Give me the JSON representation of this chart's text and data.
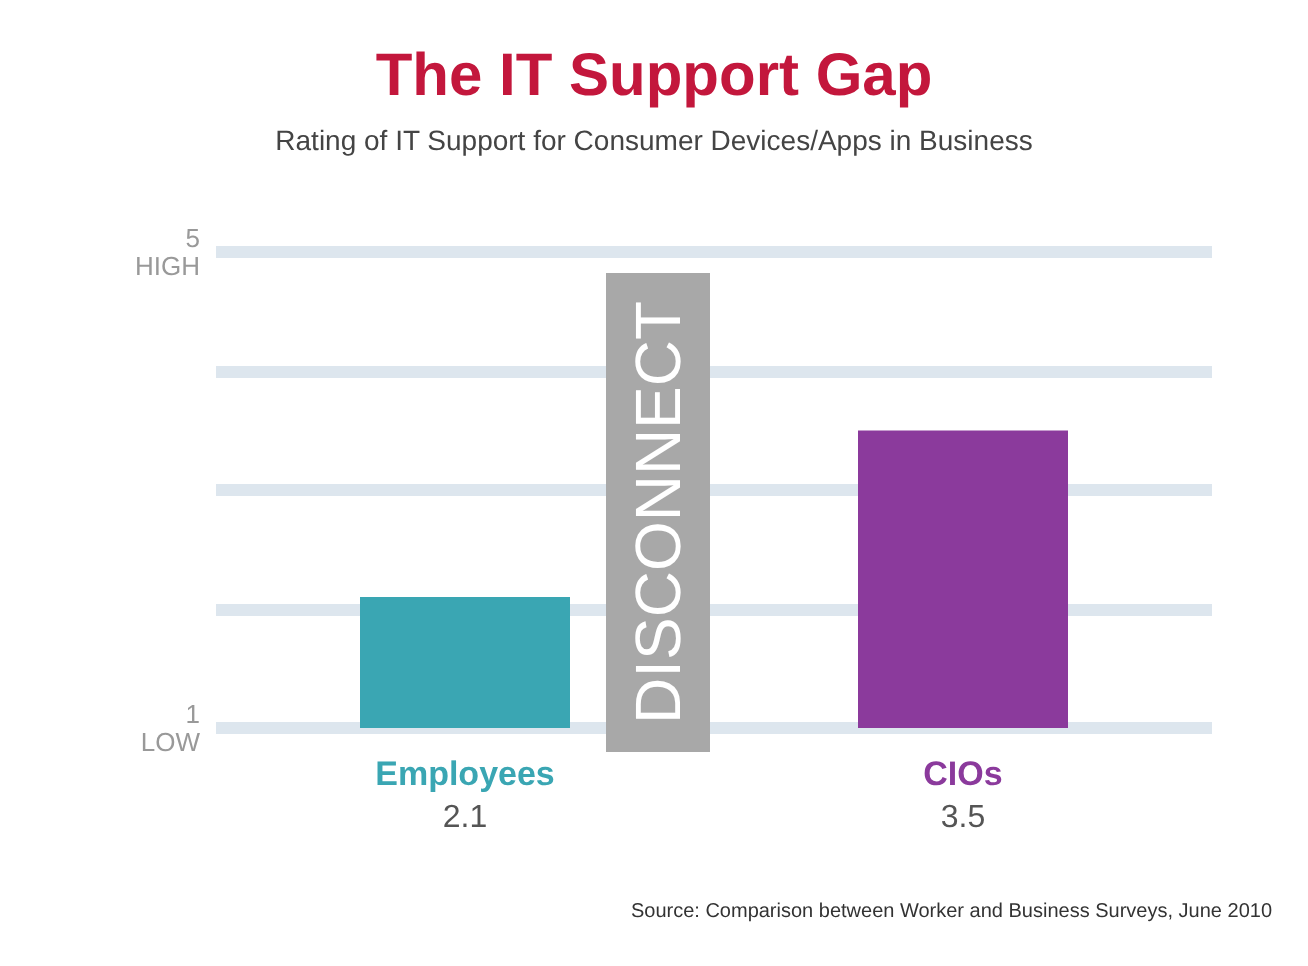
{
  "chart_data": {
    "type": "bar",
    "title": "The IT Support Gap",
    "subtitle": "Rating of IT Support for Consumer Devices/Apps in Business",
    "categories": [
      "Employees",
      "CIOs"
    ],
    "values": [
      2.1,
      3.5
    ],
    "colors": [
      "#3aa6b3",
      "#8b3a9c"
    ],
    "ylim": [
      1,
      5
    ],
    "yticks": [
      {
        "value": 1,
        "label": "1\nLOW"
      },
      {
        "value": 2,
        "label": null
      },
      {
        "value": 3,
        "label": null
      },
      {
        "value": 4,
        "label": null
      },
      {
        "value": 5,
        "label": "5\nHIGH"
      }
    ],
    "grid": "y",
    "data_labels": true,
    "annotations": [
      "DISCONNECT",
      "Source: Comparison between Worker and Business Surveys, June 2010"
    ]
  }
}
